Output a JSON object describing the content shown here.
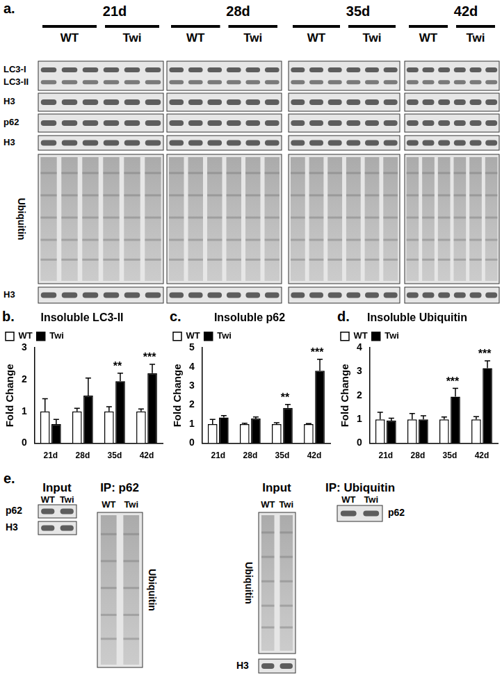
{
  "panel_labels": [
    "a.",
    "b.",
    "c.",
    "d.",
    "e."
  ],
  "blot_a": {
    "timepoints": [
      "21d",
      "28d",
      "35d",
      "42d"
    ],
    "groups": [
      "WT",
      "Twi"
    ],
    "rows": [
      [
        "LC3-I",
        "LC3-II"
      ],
      [
        "H3"
      ],
      [
        "p62"
      ],
      [
        "H3"
      ],
      [
        "Ubiquitin"
      ],
      [
        "H3"
      ]
    ]
  },
  "blot_e": [
    {
      "title": "Input",
      "lanes": [
        "WT",
        "Twi"
      ],
      "rows": [
        "p62",
        "H3"
      ]
    },
    {
      "title": "IP: p62",
      "lanes": [
        "WT",
        "Twi"
      ],
      "rows": [
        "Ubiquitin"
      ]
    },
    {
      "title": "Input",
      "lanes": [
        "WT",
        "Twi"
      ],
      "rows": [
        "Ubiquitin",
        "H3"
      ]
    },
    {
      "title": "IP: Ubiquitin",
      "lanes": [
        "WT",
        "Twi"
      ],
      "rows": [
        "p62"
      ]
    }
  ],
  "chart_data": [
    {
      "type": "bar",
      "title": "Insoluble LC3-II",
      "ylabel": "Fold Change",
      "categories": [
        "21d",
        "28d",
        "35d",
        "42d"
      ],
      "series": [
        {
          "name": "WT",
          "color": "#ffffff",
          "values": [
            1,
            1,
            1,
            1
          ],
          "errors": [
            0.4,
            0.1,
            0.15,
            0.08
          ]
        },
        {
          "name": "Twi",
          "color": "#000000",
          "values": [
            0.6,
            1.5,
            1.95,
            2.2
          ],
          "errors": [
            0.15,
            0.55,
            0.25,
            0.28
          ],
          "significance": [
            null,
            null,
            "**",
            "***"
          ]
        }
      ],
      "ylim": [
        0,
        3
      ],
      "yticks": [
        0,
        1,
        2,
        3
      ],
      "legend": "top-left",
      "grid": false
    },
    {
      "type": "bar",
      "title": "Insoluble p62",
      "ylabel": "Fold Change",
      "categories": [
        "21d",
        "28d",
        "35d",
        "42d"
      ],
      "series": [
        {
          "name": "WT",
          "color": "#ffffff",
          "values": [
            1,
            1,
            1,
            1
          ],
          "errors": [
            0.25,
            0.05,
            0.08,
            0.03
          ]
        },
        {
          "name": "Twi",
          "color": "#000000",
          "values": [
            1.35,
            1.3,
            1.85,
            3.8
          ],
          "errors": [
            0.1,
            0.08,
            0.18,
            0.6
          ],
          "significance": [
            null,
            null,
            "**",
            "***"
          ]
        }
      ],
      "ylim": [
        0,
        5
      ],
      "yticks": [
        0,
        1,
        2,
        3,
        4,
        5
      ],
      "legend": "top-left",
      "grid": false
    },
    {
      "type": "bar",
      "title": "Insoluble Ubiquitin",
      "ylabel": "Fold Change",
      "categories": [
        "21d",
        "28d",
        "35d",
        "42d"
      ],
      "series": [
        {
          "name": "WT",
          "color": "#ffffff",
          "values": [
            1,
            1,
            1,
            1
          ],
          "errors": [
            0.3,
            0.25,
            0.1,
            0.12
          ]
        },
        {
          "name": "Twi",
          "color": "#000000",
          "values": [
            0.95,
            1.0,
            1.95,
            3.15
          ],
          "errors": [
            0.1,
            0.15,
            0.35,
            0.3
          ],
          "significance": [
            null,
            null,
            "***",
            "***"
          ]
        }
      ],
      "ylim": [
        0,
        4
      ],
      "yticks": [
        0,
        1,
        2,
        3,
        4
      ],
      "legend": "top-left",
      "grid": false
    }
  ]
}
